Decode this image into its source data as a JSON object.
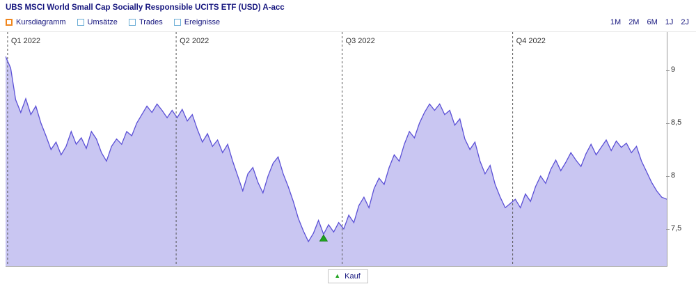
{
  "header": {
    "title": "UBS MSCI World Small Cap Socially Responsible UCITS ETF (USD) A-acc"
  },
  "toolbar": {
    "series_toggles": [
      {
        "label": "Kursdiagramm",
        "checked": true,
        "accent": "#f0861e"
      },
      {
        "label": "Umsätze",
        "checked": false,
        "accent": "#6caed6"
      },
      {
        "label": "Trades",
        "checked": false,
        "accent": "#6caed6"
      },
      {
        "label": "Ereignisse",
        "checked": false,
        "accent": "#6caed6"
      }
    ],
    "range_buttons": [
      {
        "label": "1M"
      },
      {
        "label": "2M"
      },
      {
        "label": "6M"
      },
      {
        "label": "1J"
      },
      {
        "label": "2J"
      }
    ]
  },
  "legend": {
    "marker": "▲",
    "marker_color": "#1fa31f",
    "label": "Kauf"
  },
  "chart_data": {
    "type": "area",
    "title": "Kursdiagramm 2022",
    "line_color": "#5b50d6",
    "fill_color": "#c9c6f2",
    "grid": "quarter-dashed-vertical",
    "legend_position": "bottom-center",
    "y_ticks": [
      {
        "label": "9",
        "value": 9
      },
      {
        "label": "8,5",
        "value": 8.5
      },
      {
        "label": "8",
        "value": 8
      },
      {
        "label": "7,5",
        "value": 7.5
      }
    ],
    "y_range": [
      7.15,
      9.36
    ],
    "quarters": [
      {
        "label": "Q1 2022",
        "pos": 0.003
      },
      {
        "label": "Q2 2022",
        "pos": 0.258
      },
      {
        "label": "Q3 2022",
        "pos": 0.509
      },
      {
        "label": "Q4 2022",
        "pos": 0.767
      }
    ],
    "values": [
      9.13,
      9.02,
      8.72,
      8.6,
      8.73,
      8.58,
      8.66,
      8.5,
      8.38,
      8.25,
      8.32,
      8.2,
      8.28,
      8.42,
      8.3,
      8.36,
      8.26,
      8.42,
      8.35,
      8.22,
      8.14,
      8.28,
      8.35,
      8.3,
      8.42,
      8.38,
      8.5,
      8.58,
      8.66,
      8.6,
      8.68,
      8.62,
      8.55,
      8.62,
      8.55,
      8.63,
      8.52,
      8.58,
      8.44,
      8.32,
      8.4,
      8.28,
      8.34,
      8.22,
      8.3,
      8.14,
      8.0,
      7.86,
      8.02,
      8.08,
      7.94,
      7.84,
      8.0,
      8.12,
      8.18,
      8.02,
      7.9,
      7.76,
      7.6,
      7.48,
      7.38,
      7.46,
      7.58,
      7.45,
      7.54,
      7.47,
      7.56,
      7.5,
      7.63,
      7.56,
      7.72,
      7.8,
      7.7,
      7.88,
      7.98,
      7.92,
      8.08,
      8.2,
      8.14,
      8.3,
      8.42,
      8.36,
      8.5,
      8.6,
      8.68,
      8.62,
      8.68,
      8.58,
      8.62,
      8.48,
      8.54,
      8.35,
      8.25,
      8.32,
      8.14,
      8.02,
      8.1,
      7.92,
      7.8,
      7.7,
      7.74,
      7.78,
      7.7,
      7.83,
      7.76,
      7.9,
      8.0,
      7.93,
      8.06,
      8.15,
      8.05,
      8.13,
      8.22,
      8.15,
      8.09,
      8.21,
      8.3,
      8.2,
      8.27,
      8.34,
      8.24,
      8.33,
      8.27,
      8.31,
      8.22,
      8.28,
      8.14,
      8.04,
      7.94,
      7.86,
      7.8,
      7.78
    ],
    "markers": [
      {
        "label": "Kauf",
        "shape": "triangle-up",
        "color": "#1fa31f",
        "index": 63,
        "value": 7.45
      }
    ]
  }
}
